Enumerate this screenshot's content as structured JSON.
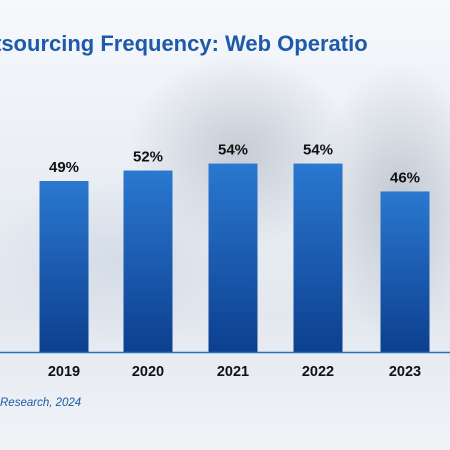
{
  "title": "tsourcing Frequency: Web Operatio",
  "footnote": "Research, 2024",
  "colors": {
    "bar_top": "#2a78d0",
    "bar_bottom": "#0d3f8f",
    "title": "#1e5aa8",
    "axis": "#2a6fbf"
  },
  "chart_data": {
    "type": "bar",
    "title": "tsourcing Frequency: Web Operatio",
    "categories": [
      "2019",
      "2020",
      "2021",
      "2022",
      "2023"
    ],
    "values": [
      49,
      52,
      54,
      54,
      46
    ],
    "value_labels": [
      "49%",
      "52%",
      "54%",
      "54%",
      "46%"
    ],
    "xlabel": "",
    "ylabel": "",
    "ylim": [
      0,
      60
    ],
    "grid": false,
    "legend": "none"
  }
}
